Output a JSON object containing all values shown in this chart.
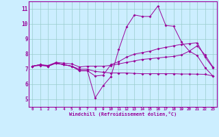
{
  "xlabel": "Windchill (Refroidissement éolien,°C)",
  "background_color": "#cceeff",
  "grid_color": "#99cccc",
  "line_color": "#990099",
  "xlim": [
    -0.5,
    23.5
  ],
  "ylim": [
    4.5,
    11.5
  ],
  "xticks": [
    0,
    1,
    2,
    3,
    4,
    5,
    6,
    7,
    8,
    9,
    10,
    11,
    12,
    13,
    14,
    15,
    16,
    17,
    18,
    19,
    20,
    21,
    22,
    23
  ],
  "yticks": [
    5,
    6,
    7,
    8,
    9,
    10,
    11
  ],
  "curve1_y": [
    7.2,
    7.3,
    7.2,
    7.4,
    7.3,
    7.2,
    6.9,
    6.9,
    5.1,
    5.9,
    6.5,
    8.3,
    9.8,
    10.6,
    10.5,
    10.5,
    11.2,
    9.9,
    9.85,
    8.8,
    8.2,
    7.9,
    7.1,
    6.55
  ],
  "curve2_y": [
    7.2,
    7.3,
    7.2,
    7.4,
    7.3,
    7.2,
    6.9,
    6.9,
    6.55,
    6.6,
    7.3,
    7.5,
    7.8,
    8.0,
    8.1,
    8.2,
    8.35,
    8.45,
    8.55,
    8.65,
    8.7,
    8.75,
    7.8,
    7.1
  ],
  "curve3_y": [
    7.2,
    7.25,
    7.2,
    7.4,
    7.3,
    7.2,
    7.0,
    7.0,
    6.85,
    6.8,
    6.75,
    6.75,
    6.75,
    6.72,
    6.7,
    6.7,
    6.7,
    6.7,
    6.7,
    6.68,
    6.68,
    6.67,
    6.66,
    6.55
  ],
  "curve4_y": [
    7.2,
    7.3,
    7.25,
    7.45,
    7.4,
    7.35,
    7.15,
    7.2,
    7.2,
    7.2,
    7.25,
    7.35,
    7.45,
    7.55,
    7.65,
    7.7,
    7.75,
    7.8,
    7.85,
    7.95,
    8.2,
    8.55,
    7.95,
    7.15
  ]
}
